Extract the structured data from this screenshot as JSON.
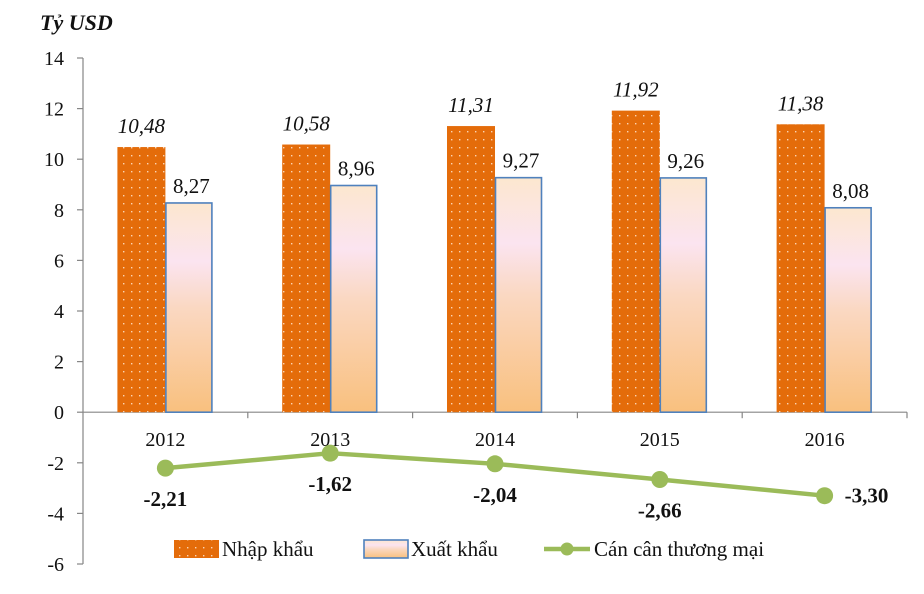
{
  "chart_data": {
    "type": "bar",
    "title": "",
    "ylabel": "Tỷ USD",
    "xlabel": "",
    "ylim": [
      -6,
      14
    ],
    "yticks": [
      14,
      12,
      10,
      8,
      6,
      4,
      2,
      0,
      -2,
      -4,
      -6
    ],
    "grid": false,
    "legend_position": "bottom",
    "categories": [
      "2012",
      "2013",
      "2014",
      "2015",
      "2016"
    ],
    "series": [
      {
        "name": "Nhập khẩu",
        "type": "bar",
        "values": [
          10.48,
          10.58,
          11.31,
          11.92,
          11.38
        ],
        "labels": [
          "10,48",
          "10,58",
          "11,31",
          "11,92",
          "11,38"
        ],
        "color": "#E46C0A",
        "label_style": "italic"
      },
      {
        "name": "Xuất khẩu",
        "type": "bar",
        "values": [
          8.27,
          8.96,
          9.27,
          9.26,
          8.08
        ],
        "labels": [
          "8,27",
          "8,96",
          "9,27",
          "9,26",
          "8,08"
        ],
        "color": "#FAC090",
        "border_color": "#4F81BD",
        "label_style": "normal"
      },
      {
        "name": "Cán cân thương mại",
        "type": "line",
        "values": [
          -2.21,
          -1.62,
          -2.04,
          -2.66,
          -3.3
        ],
        "labels": [
          "-2,21",
          "-1,62",
          "-2,04",
          "-2,66",
          "-3,30"
        ],
        "color": "#9BBB59",
        "label_style": "bold"
      }
    ]
  },
  "axis": {
    "y_title": "Tỷ USD"
  },
  "legend": {
    "items": [
      "Nhập khẩu",
      "Xuất khẩu",
      "Cán cân thương mại"
    ]
  }
}
